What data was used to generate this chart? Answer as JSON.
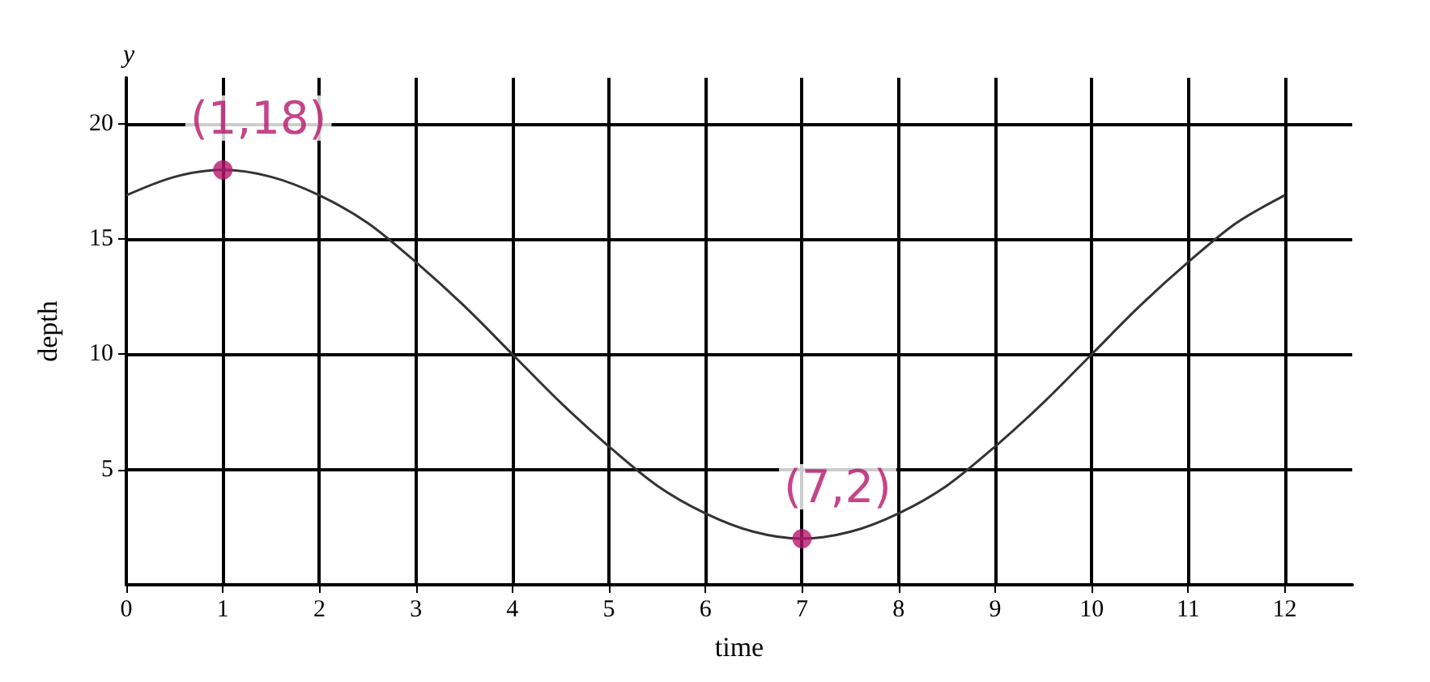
{
  "chart_data": {
    "type": "line",
    "xlabel": "time",
    "ylabel": "depth",
    "xlim": [
      0,
      12.7
    ],
    "ylim": [
      0,
      22
    ],
    "xticks": [
      0,
      1,
      2,
      3,
      4,
      5,
      6,
      7,
      8,
      9,
      10,
      11,
      12
    ],
    "yticks": [
      5,
      10,
      15,
      20
    ],
    "grid": true,
    "series": [
      {
        "color": "#333333",
        "marker": "none",
        "x": [
          0,
          0.5,
          1,
          1.5,
          2,
          2.5,
          3,
          3.5,
          4,
          4.5,
          5,
          5.5,
          6,
          6.5,
          7,
          7.5,
          8,
          8.5,
          9,
          9.5,
          10,
          10.5,
          11,
          11.5,
          12
        ],
        "values": [
          16.9,
          17.7,
          18,
          17.7,
          16.9,
          15.7,
          14,
          12.1,
          10,
          7.9,
          6,
          4.3,
          3.1,
          2.3,
          2,
          2.3,
          3.1,
          4.3,
          6,
          7.9,
          10,
          12.1,
          14,
          15.7,
          16.9
        ]
      },
      {
        "type": "scatter",
        "color": "#b5176b",
        "marker": "circle",
        "x": [
          1,
          7
        ],
        "values": [
          18,
          2
        ]
      }
    ],
    "annotations": [
      "y",
      {
        "text": "(1,18)",
        "x": 1,
        "y": 18
      },
      {
        "text": "(7,2)",
        "x": 7,
        "y": 2
      }
    ]
  }
}
